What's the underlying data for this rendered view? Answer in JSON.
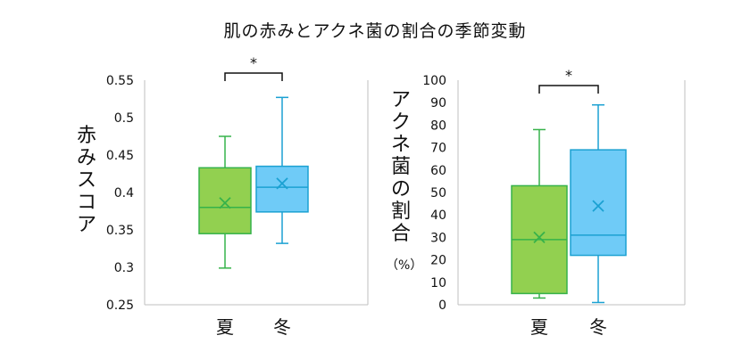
{
  "title": "肌の赤みとアクネ菌の割合の季節変動",
  "charts": [
    {
      "ylabel_chars": [
        "赤",
        "み",
        "ス",
        "コ",
        "ア"
      ],
      "ticks": [
        "0.55",
        "0.5",
        "0.45",
        "0.4",
        "0.35",
        "0.3",
        "0.25"
      ],
      "significance": "*"
    },
    {
      "ylabel_chars": [
        "ア",
        "ク",
        "ネ",
        "菌",
        "の",
        "割",
        "合"
      ],
      "unit": "（%）",
      "ticks": [
        "100",
        "90",
        "80",
        "70",
        "60",
        "50",
        "40",
        "30",
        "20",
        "10",
        "0"
      ],
      "significance": "*"
    }
  ],
  "colors": {
    "summer": "#92d050",
    "summer_stroke": "#36b24a",
    "winter": "#6fcbf7",
    "winter_stroke": "#1ba1d2"
  },
  "chart_data": [
    {
      "type": "boxplot",
      "categories": [
        "夏",
        "冬"
      ],
      "ylim": [
        0.25,
        0.55
      ],
      "ylabel": "赤みスコア",
      "series": [
        {
          "category": "夏",
          "min": 0.299,
          "q1": 0.345,
          "median": 0.38,
          "q3": 0.433,
          "max": 0.475,
          "mean": 0.386
        },
        {
          "category": "冬",
          "min": 0.332,
          "q1": 0.374,
          "median": 0.407,
          "q3": 0.435,
          "max": 0.527,
          "mean": 0.412
        }
      ]
    },
    {
      "type": "boxplot",
      "categories": [
        "夏",
        "冬"
      ],
      "ylim": [
        0,
        100
      ],
      "ylabel": "アクネ菌の割合（%）",
      "series": [
        {
          "category": "夏",
          "min": 3,
          "q1": 5,
          "median": 29,
          "q3": 53,
          "max": 78,
          "mean": 30
        },
        {
          "category": "冬",
          "min": 1,
          "q1": 22,
          "median": 31,
          "q3": 69,
          "max": 89,
          "mean": 44
        }
      ]
    }
  ]
}
